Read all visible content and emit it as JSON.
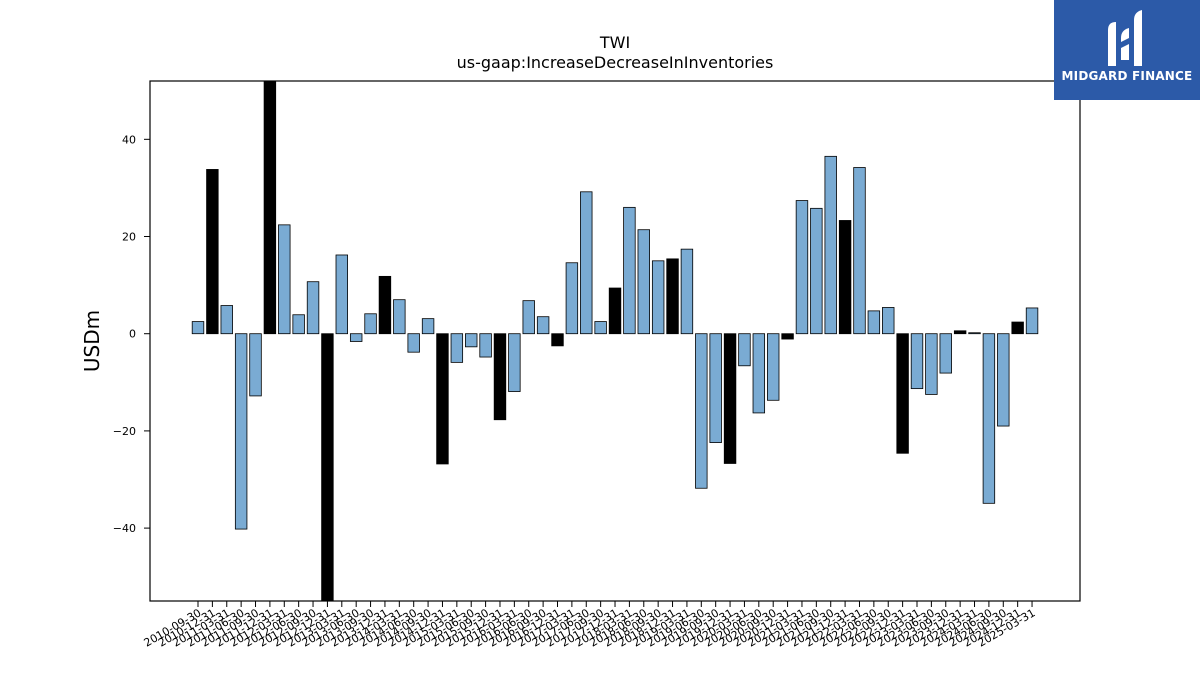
{
  "brand": {
    "name": "MIDGARD FINANCE",
    "logo_icon": "midgard-logo-icon",
    "bg_color": "#2c5aa8"
  },
  "colors": {
    "normal": "#7aabd3",
    "highlight": "#000000"
  },
  "chart_data": {
    "type": "bar",
    "title": "TWI",
    "subtitle": "us-gaap:IncreaseDecreaseInInventories",
    "xlabel": "",
    "ylabel": "USDm",
    "ylim": [
      -55,
      52
    ],
    "yticks": [
      -40,
      -20,
      0,
      20,
      40
    ],
    "grid": false,
    "categories": [
      "2010-09-30",
      "2010-12-31",
      "2011-03-31",
      "2011-06-30",
      "2011-09-30",
      "2011-12-31",
      "2012-03-31",
      "2012-06-30",
      "2012-09-30",
      "2012-12-31",
      "2013-03-31",
      "2013-06-30",
      "2013-09-30",
      "2013-12-31",
      "2014-03-31",
      "2014-06-30",
      "2014-09-30",
      "2014-12-31",
      "2015-03-31",
      "2015-06-30",
      "2015-09-30",
      "2015-12-31",
      "2016-03-31",
      "2016-06-30",
      "2016-09-30",
      "2016-12-31",
      "2017-03-31",
      "2017-06-30",
      "2017-09-30",
      "2017-12-31",
      "2018-03-31",
      "2018-06-30",
      "2018-09-30",
      "2018-12-31",
      "2019-03-31",
      "2019-06-30",
      "2019-09-30",
      "2019-12-31",
      "2020-03-31",
      "2020-06-30",
      "2020-09-30",
      "2020-12-31",
      "2021-03-31",
      "2021-06-30",
      "2021-09-30",
      "2021-12-31",
      "2022-03-31",
      "2022-06-30",
      "2022-09-30",
      "2022-12-31",
      "2023-03-31",
      "2023-06-30",
      "2023-09-30",
      "2023-12-31",
      "2024-03-31",
      "2024-06-30",
      "2024-09-30",
      "2024-12-31",
      "2025-03-31"
    ],
    "values": [
      2.5,
      33.8,
      5.8,
      -40.2,
      -12.8,
      53.0,
      22.4,
      3.9,
      10.7,
      -55.0,
      16.2,
      -1.6,
      4.1,
      11.8,
      7.0,
      -3.8,
      3.1,
      -26.8,
      -5.9,
      -2.7,
      -4.8,
      -17.7,
      -11.9,
      6.8,
      3.5,
      -2.5,
      14.6,
      29.2,
      2.5,
      9.4,
      26.0,
      21.4,
      15.0,
      15.4,
      17.4,
      -31.8,
      -22.4,
      -26.7,
      -6.6,
      -16.3,
      -13.7,
      -1.1,
      27.4,
      25.8,
      36.5,
      23.3,
      34.2,
      4.7,
      5.4,
      -24.6,
      -11.3,
      -12.5,
      -8.1,
      0.6,
      0.2,
      -34.9,
      -19.0,
      2.4,
      5.3
    ],
    "highlight_categories": [
      "2010-12-31",
      "2011-12-31",
      "2012-12-31",
      "2013-12-31",
      "2014-12-31",
      "2015-12-31",
      "2016-12-31",
      "2017-12-31",
      "2018-12-31",
      "2019-12-31",
      "2020-12-31",
      "2021-12-31",
      "2022-12-31",
      "2023-12-31",
      "2024-12-31"
    ]
  }
}
